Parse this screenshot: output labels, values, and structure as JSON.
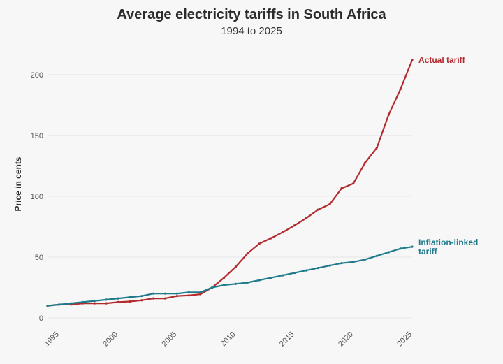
{
  "title": "Average electricity tariffs in South Africa",
  "subtitle": "1994 to 2025",
  "colors": {
    "actual": "#b22a2e",
    "inflation": "#1f7b8c",
    "grid": "#e6e6e6",
    "background": "#f7f7f7"
  },
  "chart_data": {
    "type": "line",
    "title": "Average electricity tariffs in South Africa",
    "subtitle": "1994 to 2025",
    "xlabel": "",
    "ylabel": "Price in cents",
    "xlim": [
      1994,
      2025
    ],
    "ylim": [
      0,
      220
    ],
    "xticks": [
      1995,
      2000,
      2005,
      2010,
      2015,
      2020,
      2025
    ],
    "yticks": [
      0,
      50,
      100,
      150,
      200
    ],
    "grid": "horizontal",
    "legend": "inline labels at line ends",
    "x": [
      1994,
      1995,
      1996,
      1997,
      1998,
      1999,
      2000,
      2001,
      2002,
      2003,
      2004,
      2005,
      2006,
      2007,
      2008,
      2009,
      2010,
      2011,
      2012,
      2013,
      2014,
      2015,
      2016,
      2017,
      2018,
      2019,
      2020,
      2021,
      2022,
      2023,
      2024,
      2025
    ],
    "series": [
      {
        "name": "Actual tariff",
        "color": "#b22a2e",
        "values": [
          10,
          11,
          11,
          12,
          12,
          12,
          13,
          13.5,
          14.5,
          16,
          16,
          18,
          18.5,
          19.5,
          25,
          33,
          42,
          53,
          61,
          65.5,
          70.5,
          76,
          82,
          89,
          93.5,
          106.5,
          110.5,
          127.5,
          140,
          167,
          188,
          212
        ]
      },
      {
        "name": "Inflation-linked tariff",
        "label_lines": [
          "Inflation-linked",
          "tariff"
        ],
        "color": "#1f7b8c",
        "values": [
          10,
          11,
          12,
          13,
          14,
          15,
          16,
          17,
          18,
          20,
          20,
          20,
          21,
          21,
          25,
          27,
          28,
          29,
          31,
          33,
          35,
          37,
          39,
          41,
          43,
          45,
          46,
          48,
          51,
          54,
          57,
          58.5
        ]
      }
    ]
  }
}
